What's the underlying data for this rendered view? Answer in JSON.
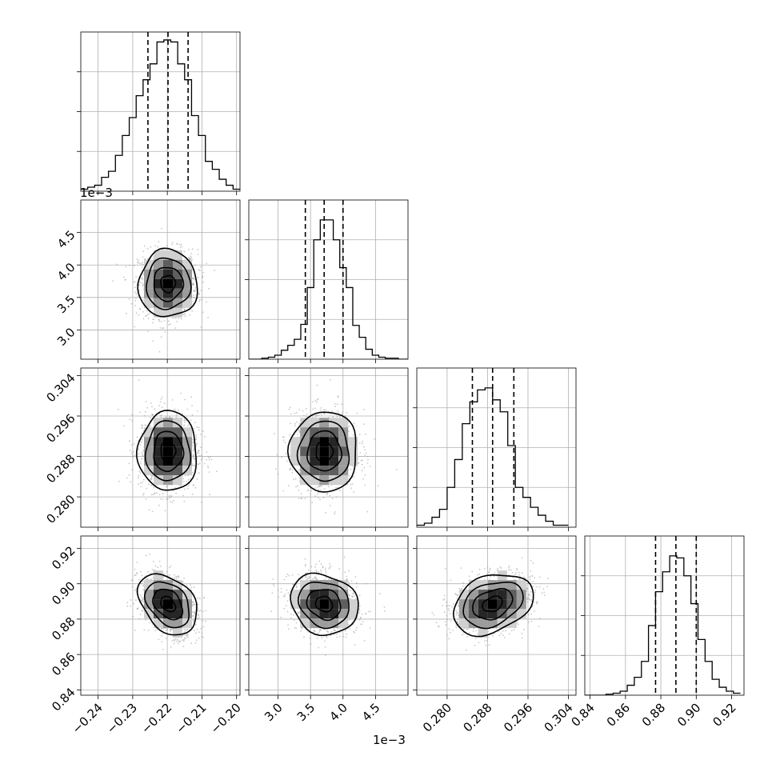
{
  "figure": {
    "offset_text": "1e−3"
  },
  "chart_data": {
    "type": "corner",
    "parameters": [
      {
        "index": 0,
        "range": [
          -0.245,
          -0.199
        ],
        "ticks": [
          -0.24,
          -0.23,
          -0.22,
          -0.21,
          -0.2
        ],
        "tick_labels": [
          "−0.24",
          "−0.23",
          "−0.22",
          "−0.21",
          "−0.20"
        ],
        "offset": "",
        "quantiles": [
          -0.2256,
          -0.2198,
          -0.214
        ],
        "hist": {
          "edges": [
            -0.245,
            -0.243,
            -0.241,
            -0.239,
            -0.237,
            -0.235,
            -0.233,
            -0.231,
            -0.229,
            -0.227,
            -0.225,
            -0.223,
            -0.221,
            -0.219,
            -0.217,
            -0.215,
            -0.213,
            -0.211,
            -0.209,
            -0.207,
            -0.205,
            -0.203,
            -0.201,
            -0.199
          ],
          "counts": [
            2,
            4,
            6,
            14,
            20,
            36,
            56,
            74,
            96,
            112,
            128,
            150,
            152,
            150,
            128,
            112,
            76,
            56,
            30,
            22,
            12,
            6,
            2
          ]
        }
      },
      {
        "index": 1,
        "range": [
          2.55,
          5.0
        ],
        "ticks": [
          3.0,
          3.5,
          4.0,
          4.5
        ],
        "tick_labels": [
          "3.0",
          "3.5",
          "4.0",
          "4.5"
        ],
        "offset": "1e−3",
        "quantiles": [
          3.42,
          3.71,
          4.0
        ],
        "hist": {
          "edges": [
            2.55,
            2.65,
            2.75,
            2.85,
            2.95,
            3.05,
            3.15,
            3.25,
            3.35,
            3.45,
            3.55,
            3.65,
            3.75,
            3.85,
            3.95,
            4.05,
            4.15,
            4.25,
            4.35,
            4.45,
            4.55,
            4.65,
            4.75,
            4.85,
            4.95,
            5.0
          ],
          "counts": [
            0,
            0,
            1,
            2,
            4,
            9,
            14,
            20,
            35,
            72,
            120,
            140,
            140,
            120,
            92,
            72,
            34,
            22,
            10,
            4,
            2,
            1,
            1,
            0,
            0
          ]
        }
      },
      {
        "index": 2,
        "range": [
          0.274,
          0.3055
        ],
        "ticks": [
          0.28,
          0.288,
          0.296,
          0.304
        ],
        "tick_labels": [
          "0.280",
          "0.288",
          "0.296",
          "0.304"
        ],
        "offset": "",
        "quantiles": [
          0.285,
          0.289,
          0.2932
        ],
        "hist": {
          "edges": [
            0.274,
            0.2755,
            0.277,
            0.2785,
            0.28,
            0.2815,
            0.283,
            0.2845,
            0.286,
            0.2875,
            0.289,
            0.2905,
            0.292,
            0.2935,
            0.295,
            0.2965,
            0.298,
            0.2995,
            0.301,
            0.3025,
            0.304
          ],
          "counts": [
            2,
            4,
            10,
            18,
            40,
            68,
            104,
            126,
            138,
            140,
            128,
            116,
            82,
            40,
            30,
            20,
            12,
            6,
            2,
            2
          ]
        }
      },
      {
        "index": 3,
        "range": [
          0.837,
          0.927
        ],
        "ticks": [
          0.84,
          0.86,
          0.88,
          0.9,
          0.92
        ],
        "tick_labels": [
          "0.84",
          "0.86",
          "0.88",
          "0.90",
          "0.92"
        ],
        "offset": "",
        "quantiles": [
          0.877,
          0.8885,
          0.9
        ],
        "hist": {
          "edges": [
            0.837,
            0.841,
            0.845,
            0.849,
            0.853,
            0.857,
            0.861,
            0.865,
            0.869,
            0.873,
            0.877,
            0.881,
            0.885,
            0.889,
            0.893,
            0.897,
            0.901,
            0.905,
            0.909,
            0.913,
            0.917,
            0.921,
            0.925
          ],
          "counts": [
            0,
            0,
            0,
            1,
            2,
            4,
            10,
            18,
            34,
            70,
            104,
            124,
            140,
            138,
            120,
            92,
            56,
            34,
            16,
            8,
            4,
            2
          ]
        }
      }
    ],
    "pairs": [
      {
        "x": 0,
        "y": 1,
        "center": [
          -0.2198,
          3.71
        ],
        "rx": 0.0085,
        "ry": 0.52,
        "tilt": 0
      },
      {
        "x": 0,
        "y": 2,
        "center": [
          -0.2198,
          0.289
        ],
        "rx": 0.0085,
        "ry": 0.0079,
        "tilt": 0
      },
      {
        "x": 1,
        "y": 2,
        "center": [
          3.71,
          0.289
        ],
        "rx": 0.52,
        "ry": 0.0079,
        "tilt": 0
      },
      {
        "x": 0,
        "y": 3,
        "center": [
          -0.2198,
          0.8885
        ],
        "rx": 0.0085,
        "ry": 0.0172,
        "tilt": -0.35
      },
      {
        "x": 1,
        "y": 3,
        "center": [
          3.71,
          0.8885
        ],
        "rx": 0.52,
        "ry": 0.0172,
        "tilt": -0.15
      },
      {
        "x": 2,
        "y": 3,
        "center": [
          0.289,
          0.8885
        ],
        "rx": 0.0079,
        "ry": 0.0172,
        "tilt": 0.3
      }
    ],
    "contour_levels": [
      0.5,
      1.0,
      1.5,
      2.0
    ],
    "grid": true,
    "colors": {
      "line": "#000000",
      "grid": "#b0b0b0",
      "scatter": "#9a9a9a",
      "density": [
        "#ffffff",
        "#d0d0d0",
        "#9c9c9c",
        "#5e5e5e",
        "#262626",
        "#000000"
      ]
    }
  }
}
